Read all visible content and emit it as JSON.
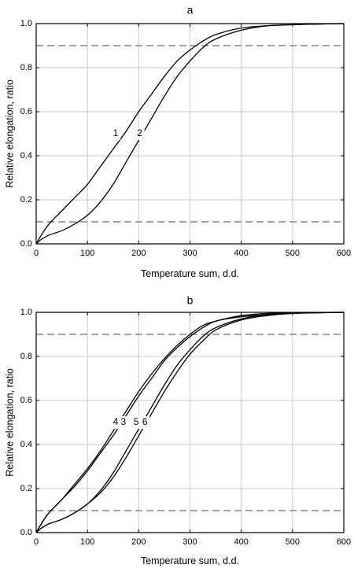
{
  "chart_data": [
    {
      "type": "line",
      "title": "a",
      "xlabel": "Temperature sum, d.d.",
      "ylabel": "Relative elongation, ratio",
      "xlim": [
        0,
        600
      ],
      "ylim": [
        0,
        1.0
      ],
      "xticks": [
        "0",
        "100",
        "200",
        "300",
        "400",
        "500",
        "600"
      ],
      "yticks": [
        "0.0",
        "0.2",
        "0.4",
        "0.6",
        "0.8",
        "1.0"
      ],
      "grid": true,
      "reference_lines": [
        0.1,
        0.9
      ],
      "series": [
        {
          "name": "1",
          "x": [
            0,
            10,
            25,
            50,
            75,
            100,
            125,
            150,
            175,
            200,
            225,
            250,
            275,
            300,
            325,
            350,
            400,
            450,
            500,
            550,
            600
          ],
          "y": [
            0.0,
            0.04,
            0.09,
            0.15,
            0.21,
            0.27,
            0.35,
            0.43,
            0.51,
            0.6,
            0.68,
            0.76,
            0.83,
            0.88,
            0.92,
            0.95,
            0.98,
            0.99,
            0.995,
            0.998,
            1.0
          ],
          "label_at": [
            155,
            0.5
          ]
        },
        {
          "name": "2",
          "x": [
            0,
            10,
            25,
            50,
            75,
            100,
            125,
            150,
            175,
            200,
            225,
            250,
            275,
            300,
            325,
            350,
            400,
            450,
            500,
            550,
            600
          ],
          "y": [
            0.0,
            0.02,
            0.04,
            0.06,
            0.09,
            0.13,
            0.19,
            0.27,
            0.37,
            0.47,
            0.57,
            0.67,
            0.76,
            0.83,
            0.89,
            0.93,
            0.97,
            0.99,
            0.995,
            0.998,
            1.0
          ],
          "label_at": [
            202,
            0.5
          ]
        }
      ]
    },
    {
      "type": "line",
      "title": "b",
      "xlabel": "Temperature sum, d.d.",
      "ylabel": "Relative elongation, ratio",
      "xlim": [
        0,
        600
      ],
      "ylim": [
        0,
        1.0
      ],
      "xticks": [
        "0",
        "100",
        "200",
        "300",
        "400",
        "500",
        "600"
      ],
      "yticks": [
        "0.0",
        "0.2",
        "0.4",
        "0.6",
        "0.8",
        "1.0"
      ],
      "grid": true,
      "reference_lines": [
        0.1,
        0.9
      ],
      "series": [
        {
          "name": "3",
          "x": [
            0,
            10,
            25,
            50,
            75,
            100,
            125,
            150,
            175,
            200,
            225,
            250,
            275,
            300,
            325,
            350,
            400,
            450,
            500,
            550,
            600
          ],
          "y": [
            0.0,
            0.04,
            0.09,
            0.15,
            0.21,
            0.28,
            0.36,
            0.44,
            0.53,
            0.62,
            0.7,
            0.78,
            0.84,
            0.89,
            0.93,
            0.96,
            0.98,
            0.99,
            0.996,
            0.999,
            1.0
          ],
          "label_at": [
            170,
            0.5
          ]
        },
        {
          "name": "4",
          "x": [
            0,
            10,
            25,
            50,
            75,
            100,
            125,
            150,
            175,
            200,
            225,
            250,
            275,
            300,
            325,
            350,
            400,
            450,
            500,
            550,
            600
          ],
          "y": [
            0.0,
            0.04,
            0.09,
            0.15,
            0.22,
            0.29,
            0.37,
            0.46,
            0.55,
            0.64,
            0.72,
            0.79,
            0.85,
            0.9,
            0.94,
            0.96,
            0.985,
            0.995,
            0.998,
            0.999,
            1.0
          ],
          "label_at": [
            155,
            0.5
          ]
        },
        {
          "name": "5",
          "x": [
            0,
            10,
            25,
            50,
            75,
            100,
            125,
            150,
            175,
            200,
            225,
            250,
            275,
            300,
            325,
            350,
            400,
            450,
            500,
            550,
            600
          ],
          "y": [
            0.0,
            0.02,
            0.04,
            0.06,
            0.09,
            0.13,
            0.19,
            0.27,
            0.37,
            0.47,
            0.57,
            0.67,
            0.76,
            0.83,
            0.89,
            0.93,
            0.97,
            0.99,
            0.995,
            0.998,
            1.0
          ],
          "label_at": [
            195,
            0.5
          ]
        },
        {
          "name": "6",
          "x": [
            0,
            10,
            25,
            50,
            75,
            100,
            125,
            150,
            175,
            200,
            225,
            250,
            275,
            300,
            325,
            350,
            400,
            450,
            500,
            550,
            600
          ],
          "y": [
            0.0,
            0.02,
            0.04,
            0.06,
            0.09,
            0.13,
            0.18,
            0.25,
            0.34,
            0.44,
            0.54,
            0.64,
            0.73,
            0.81,
            0.87,
            0.92,
            0.965,
            0.985,
            0.995,
            0.998,
            1.0
          ],
          "label_at": [
            212,
            0.5
          ]
        }
      ]
    }
  ]
}
